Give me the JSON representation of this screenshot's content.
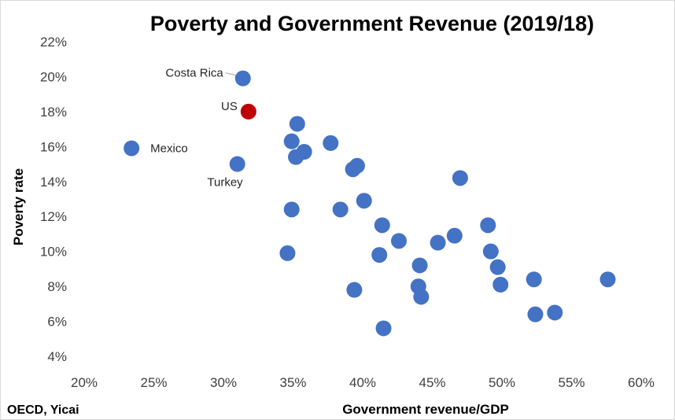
{
  "chart_data": {
    "type": "scatter",
    "title": "Poverty and Government Revenue (2019/18)",
    "xlabel": "Government revenue/GDP",
    "ylabel": "Poverty rate",
    "source": "OECD, Yicai",
    "xlim": [
      0.2,
      0.6
    ],
    "ylim": [
      0.04,
      0.22
    ],
    "xticks": [
      0.2,
      0.25,
      0.3,
      0.35,
      0.4,
      0.45,
      0.5,
      0.55,
      0.6
    ],
    "yticks": [
      0.04,
      0.06,
      0.08,
      0.1,
      0.12,
      0.14,
      0.16,
      0.18,
      0.2,
      0.22
    ],
    "xtick_labels": [
      "20%",
      "25%",
      "30%",
      "35%",
      "40%",
      "45%",
      "50%",
      "55%",
      "60%"
    ],
    "ytick_labels": [
      "4%",
      "6%",
      "8%",
      "10%",
      "12%",
      "14%",
      "16%",
      "18%",
      "20%",
      "22%"
    ],
    "grid": false,
    "colors": {
      "points": "#4472c4",
      "highlight": "#c00000"
    },
    "annotations": [
      {
        "label": "Costa Rica",
        "x": 0.314,
        "y": 0.199
      },
      {
        "label": "US",
        "x": 0.318,
        "y": 0.18
      },
      {
        "label": "Mexico",
        "x": 0.234,
        "y": 0.159
      },
      {
        "label": "Turkey",
        "x": 0.31,
        "y": 0.15
      }
    ],
    "points": [
      {
        "x": 0.314,
        "y": 0.199
      },
      {
        "x": 0.318,
        "y": 0.18,
        "highlight": true
      },
      {
        "x": 0.234,
        "y": 0.159
      },
      {
        "x": 0.31,
        "y": 0.15
      },
      {
        "x": 0.353,
        "y": 0.173
      },
      {
        "x": 0.349,
        "y": 0.163
      },
      {
        "x": 0.377,
        "y": 0.162
      },
      {
        "x": 0.358,
        "y": 0.157
      },
      {
        "x": 0.352,
        "y": 0.154
      },
      {
        "x": 0.396,
        "y": 0.149
      },
      {
        "x": 0.393,
        "y": 0.147
      },
      {
        "x": 0.47,
        "y": 0.142
      },
      {
        "x": 0.401,
        "y": 0.129
      },
      {
        "x": 0.349,
        "y": 0.124
      },
      {
        "x": 0.384,
        "y": 0.124
      },
      {
        "x": 0.414,
        "y": 0.115
      },
      {
        "x": 0.49,
        "y": 0.115
      },
      {
        "x": 0.466,
        "y": 0.109
      },
      {
        "x": 0.426,
        "y": 0.106
      },
      {
        "x": 0.454,
        "y": 0.105
      },
      {
        "x": 0.492,
        "y": 0.1
      },
      {
        "x": 0.346,
        "y": 0.099
      },
      {
        "x": 0.412,
        "y": 0.098
      },
      {
        "x": 0.441,
        "y": 0.092
      },
      {
        "x": 0.497,
        "y": 0.091
      },
      {
        "x": 0.523,
        "y": 0.084
      },
      {
        "x": 0.576,
        "y": 0.084
      },
      {
        "x": 0.499,
        "y": 0.081
      },
      {
        "x": 0.44,
        "y": 0.08
      },
      {
        "x": 0.394,
        "y": 0.078
      },
      {
        "x": 0.442,
        "y": 0.074
      },
      {
        "x": 0.538,
        "y": 0.065
      },
      {
        "x": 0.524,
        "y": 0.064
      },
      {
        "x": 0.415,
        "y": 0.056
      }
    ]
  }
}
